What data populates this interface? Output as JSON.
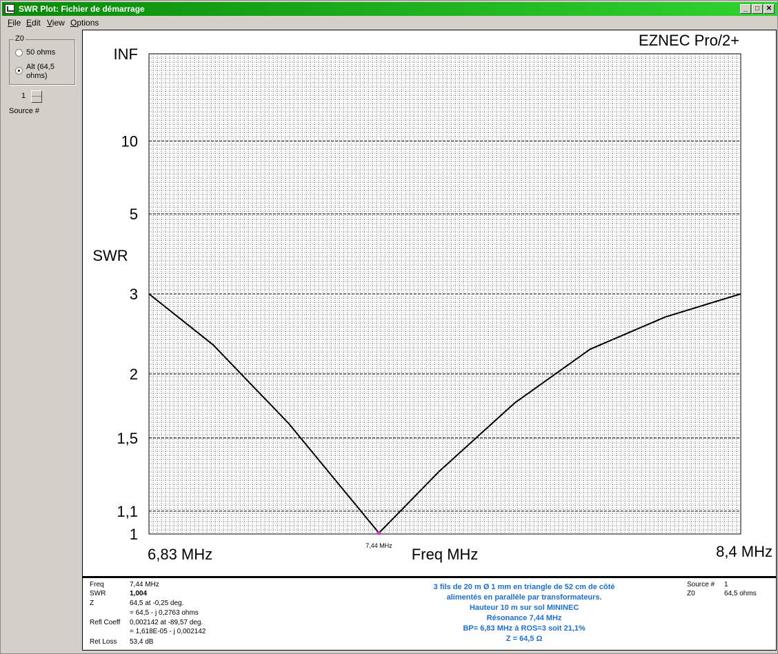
{
  "window": {
    "title": "SWR Plot: Fichier de démarrage",
    "minimize": "_",
    "maximize": "□",
    "close": "✕"
  },
  "menu": [
    "File",
    "Edit",
    "View",
    "Options"
  ],
  "left_panel": {
    "group_label": "Z0",
    "options": [
      "50 ohms",
      "Alt (64,5",
      "ohms)"
    ],
    "selected": "Alt",
    "source_value": "1",
    "source_label": "Source #"
  },
  "chart_data": {
    "type": "line",
    "brand": "EZNEC Pro/2+",
    "ylabel": "SWR",
    "xlabel": "Freq MHz",
    "y_scale": "swr-reflection",
    "x_range": [
      6.83,
      8.4
    ],
    "y_ticks": [
      "INF",
      "10",
      "5",
      "3",
      "2",
      "1,5",
      "1,1",
      "1"
    ],
    "y_tick_values": [
      null,
      10,
      5,
      3,
      2,
      1.5,
      1.1,
      1
    ],
    "x_min_label": "6,83 MHz",
    "x_max_label": "8,4 MHz",
    "marker_label": "7,44 MHz",
    "marker": {
      "x": 7.44,
      "y": 1.004
    },
    "line_color": "#000000",
    "marker_color": "#c040c0",
    "grid": true,
    "series": [
      {
        "x": [
          6.83,
          7.0,
          7.2,
          7.44,
          7.6,
          7.8,
          8.0,
          8.2,
          8.4
        ],
        "values": [
          3.0,
          2.3,
          1.6,
          1.004,
          1.3,
          1.75,
          2.25,
          2.65,
          3.0
        ]
      }
    ]
  },
  "info": {
    "labels": [
      "Freq",
      "SWR",
      "Z",
      "",
      "Refl Coeff",
      "",
      "Ret Loss"
    ],
    "values": [
      "7,44 MHz",
      "1,004",
      "64,5 at -0,25 deg.",
      "= 64,5 - j 0,2763 ohms",
      "0,002142 at -89,57 deg.",
      "= 1,618E-05 - j 0,002142",
      "53,4 dB"
    ],
    "description": [
      "3 fils de 20 m Ø 1 mm en triangle de 52 cm de côté",
      "alimentés en parallèle par transformateurs.",
      "Hauteur 10 m sur sol MININEC",
      "Résonance 7,44 MHz",
      "BP= 6,83 MHz à ROS=3 soit 21,1%",
      "Z = 64,5 Ω"
    ],
    "right_labels": [
      "Source #",
      "Z0"
    ],
    "right_values": [
      "1",
      "64,5 ohms"
    ]
  }
}
